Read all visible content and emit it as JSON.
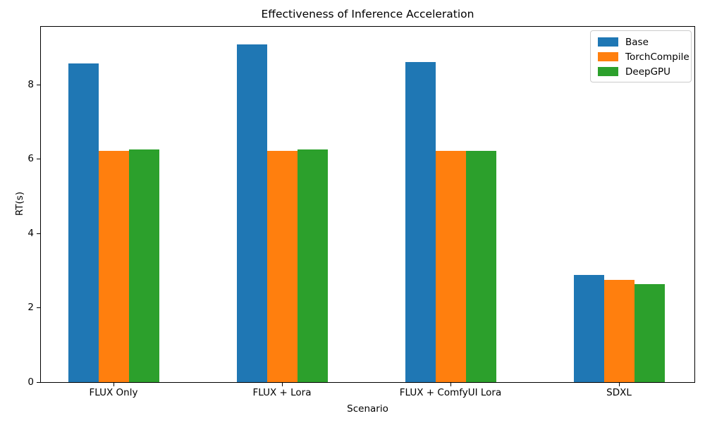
{
  "chart_data": {
    "type": "bar",
    "title": "Effectiveness of Inference Acceleration",
    "xlabel": "Scenario",
    "ylabel": "RT(s)",
    "categories": [
      "FLUX Only",
      "FLUX + Lora",
      "FLUX + ComfyUI Lora",
      "SDXL"
    ],
    "series": [
      {
        "name": "Base",
        "color": "#1f77b4",
        "values": [
          8.57,
          9.08,
          8.6,
          2.88
        ]
      },
      {
        "name": "TorchCompile",
        "color": "#ff7f0e",
        "values": [
          6.21,
          6.21,
          6.21,
          2.75
        ]
      },
      {
        "name": "DeepGPU",
        "color": "#2ca02c",
        "values": [
          6.25,
          6.25,
          6.21,
          2.63
        ]
      }
    ],
    "yticks": [
      0,
      2,
      4,
      6,
      8
    ],
    "ylim": [
      0,
      9.55
    ],
    "grid": false,
    "legend_position": "upper right",
    "spine_color": "#000000",
    "background_color": "#ffffff"
  }
}
